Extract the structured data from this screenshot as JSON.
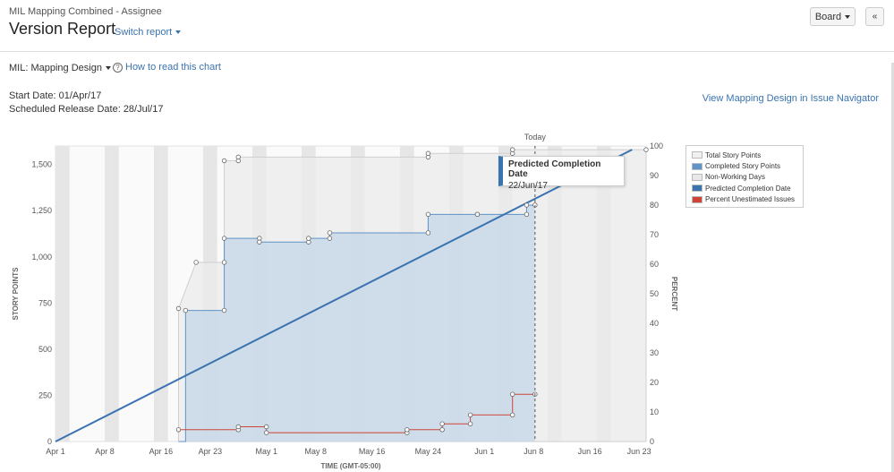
{
  "header": {
    "project": "MIL Mapping Combined - Assignee",
    "title": "Version Report",
    "switch_report": "Switch report",
    "board_button": "Board",
    "collapse_icon": "double-chevron-up-icon"
  },
  "filter": {
    "version": "MIL: Mapping Design",
    "how_to": "How to read this chart",
    "start_date_label": "Start Date:",
    "start_date": "01/Apr/17",
    "release_date_label": "Scheduled Release Date:",
    "release_date": "28/Jul/17",
    "navigator_link": "View Mapping Design in Issue Navigator"
  },
  "colors": {
    "total": "#f0f0f0",
    "completed": "#c9d9ea",
    "completed_line": "#5f94c6",
    "prediction": "#3b73af",
    "unestimated": "#d04437",
    "nonworking": "#e6e6e6"
  },
  "legend": [
    {
      "label": "Total Story Points",
      "color": "#f0f0f0"
    },
    {
      "label": "Completed Story Points",
      "color": "#5f94c6"
    },
    {
      "label": "Non-Working Days",
      "color": "#e8e8e8"
    },
    {
      "label": "Predicted Completion Date",
      "color": "#3b73af"
    },
    {
      "label": "Percent Unestimated Issues",
      "color": "#d04437"
    }
  ],
  "tooltip": {
    "title": "Predicted Completion Date",
    "value": "22/Jun/17"
  },
  "chart_data": {
    "type": "area",
    "xlabel": "TIME (GMT-05:00)",
    "ylabel": "STORY POINTS",
    "y2label": "PERCENT",
    "today_label": "Today",
    "x_range_days": [
      0,
      84
    ],
    "ylim": [
      0,
      1600
    ],
    "y2lim": [
      0,
      100
    ],
    "x_ticks": [
      {
        "label": "Apr 1",
        "day": 0
      },
      {
        "label": "Apr 8",
        "day": 7
      },
      {
        "label": "Apr 16",
        "day": 15
      },
      {
        "label": "Apr 23",
        "day": 22
      },
      {
        "label": "May 1",
        "day": 30
      },
      {
        "label": "May 8",
        "day": 37
      },
      {
        "label": "May 16",
        "day": 45
      },
      {
        "label": "May 24",
        "day": 53
      },
      {
        "label": "Jun 1",
        "day": 61
      },
      {
        "label": "Jun 8",
        "day": 68
      },
      {
        "label": "Jun 16",
        "day": 76
      },
      {
        "label": "Jun 23",
        "day": 83
      }
    ],
    "y_ticks": [
      0,
      250,
      500,
      750,
      1000,
      1250,
      1500
    ],
    "y_tick_labels": [
      "0",
      "250",
      "500",
      "750",
      "1,000",
      "1,250",
      "1,500"
    ],
    "y2_ticks": [
      0,
      10,
      20,
      30,
      40,
      50,
      60,
      70,
      80,
      90,
      100
    ],
    "today_day": 68.2,
    "series": [
      {
        "name": "Total Story Points",
        "points": [
          [
            17.5,
            0
          ],
          [
            17.5,
            720
          ],
          [
            20,
            970
          ],
          [
            24,
            970
          ],
          [
            24,
            1520
          ],
          [
            26,
            1520
          ],
          [
            26,
            1540
          ],
          [
            53,
            1540
          ],
          [
            53,
            1560
          ],
          [
            65,
            1560
          ],
          [
            65,
            1580
          ],
          [
            84,
            1580
          ]
        ]
      },
      {
        "name": "Completed Story Points",
        "points": [
          [
            17.5,
            0
          ],
          [
            18.5,
            0
          ],
          [
            18.5,
            710
          ],
          [
            24,
            710
          ],
          [
            24,
            1100
          ],
          [
            29,
            1100
          ],
          [
            29,
            1080
          ],
          [
            36,
            1080
          ],
          [
            36,
            1100
          ],
          [
            39,
            1100
          ],
          [
            39,
            1130
          ],
          [
            53,
            1130
          ],
          [
            53,
            1230
          ],
          [
            60,
            1230
          ],
          [
            60,
            1230
          ],
          [
            67,
            1230
          ],
          [
            67,
            1280
          ],
          [
            68.2,
            1280
          ]
        ]
      },
      {
        "name": "Percent Unestimated Issues",
        "points": [
          [
            17.5,
            4
          ],
          [
            26,
            4
          ],
          [
            26,
            5
          ],
          [
            30,
            5
          ],
          [
            30,
            3
          ],
          [
            50,
            3
          ],
          [
            50,
            4
          ],
          [
            55,
            4
          ],
          [
            55,
            6
          ],
          [
            59,
            6
          ],
          [
            59,
            9
          ],
          [
            65,
            9
          ],
          [
            65,
            16
          ],
          [
            68.2,
            16
          ]
        ]
      },
      {
        "name": "Predicted Completion Date",
        "points": [
          [
            0,
            0
          ],
          [
            82,
            1580
          ]
        ]
      }
    ],
    "nonworking_days": [
      0,
      1,
      7,
      8,
      14,
      15,
      21,
      22,
      28,
      29,
      35,
      36,
      42,
      43,
      49,
      50,
      56,
      57,
      63,
      64,
      70,
      71,
      77,
      78,
      84
    ]
  }
}
